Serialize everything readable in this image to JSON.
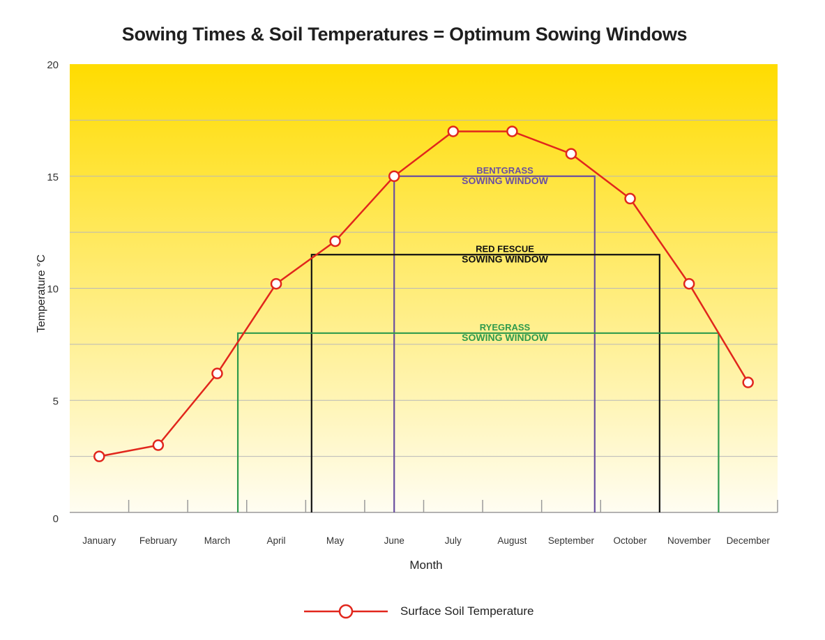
{
  "chart_data": {
    "type": "line",
    "title": "Sowing Times & Soil Temperatures = Optimum Sowing Windows",
    "xlabel": "Month",
    "ylabel": "Temperature °C",
    "ylim": [
      0,
      20
    ],
    "yticks": [
      0,
      5,
      10,
      15,
      20
    ],
    "grid": true,
    "categories": [
      "January",
      "February",
      "March",
      "April",
      "May",
      "June",
      "July",
      "August",
      "September",
      "October",
      "November",
      "December"
    ],
    "series": [
      {
        "name": "Surface Soil Temperature",
        "values": [
          2.5,
          3.0,
          6.2,
          10.2,
          12.1,
          15.0,
          17.0,
          17.0,
          16.0,
          14.0,
          10.2,
          5.8
        ],
        "color": "#e1261c"
      }
    ],
    "sowing_windows": [
      {
        "label_line1": "BENTGRASS",
        "label_line2": "SOWING WINDOW",
        "temperature": 15.0,
        "start_month": 6.0,
        "end_month": 9.4,
        "color": "#6a4fa0"
      },
      {
        "label_line1": "RED FESCUE",
        "label_line2": "SOWING WINDOW",
        "temperature": 11.5,
        "start_month": 4.6,
        "end_month": 10.5,
        "color": "#111111"
      },
      {
        "label_line1": "RYEGRASS",
        "label_line2": "SOWING WINDOW",
        "temperature": 8.0,
        "start_month": 3.35,
        "end_month": 11.5,
        "color": "#2e9a4c"
      }
    ],
    "legend_position": "bottom",
    "background_gradient": [
      "#ffdc00",
      "#fffdf2"
    ]
  }
}
